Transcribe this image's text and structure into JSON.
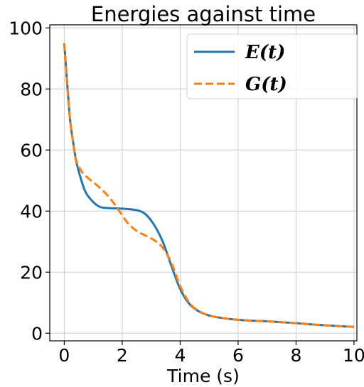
{
  "chart_data": {
    "type": "line",
    "title": "Energies against time",
    "xlabel": "Time (s)",
    "ylabel": "",
    "xlim": [
      -0.5,
      10.1
    ],
    "ylim": [
      -2.5,
      101
    ],
    "xticks": [
      0,
      2,
      4,
      6,
      8,
      10
    ],
    "yticks": [
      0,
      20,
      40,
      60,
      80,
      100
    ],
    "grid": true,
    "legend": "top-right",
    "series": [
      {
        "name": "E(t)",
        "color": "#1f77b4",
        "style": "solid",
        "x": [
          0,
          0.1,
          0.2,
          0.3,
          0.4,
          0.5,
          0.7,
          0.9,
          1.2,
          1.5,
          2.0,
          2.5,
          2.8,
          3.1,
          3.4,
          3.7,
          4.0,
          4.3,
          4.6,
          5.0,
          5.5,
          6.0,
          6.5,
          7.0,
          7.5,
          8.0,
          8.5,
          9.0,
          9.5,
          10.0
        ],
        "y": [
          95,
          82,
          70,
          63,
          57,
          53,
          47,
          44,
          41.5,
          41,
          40.8,
          40.3,
          39,
          35.5,
          30,
          22,
          14.5,
          9.8,
          7.4,
          5.8,
          4.9,
          4.4,
          4.1,
          3.9,
          3.6,
          3.3,
          2.9,
          2.6,
          2.3,
          2.1
        ]
      },
      {
        "name": "G(t)",
        "color": "#ff7f0e",
        "style": "dashed",
        "x": [
          0,
          0.1,
          0.2,
          0.3,
          0.4,
          0.6,
          0.8,
          1.0,
          1.3,
          1.6,
          1.9,
          2.2,
          2.5,
          2.8,
          3.1,
          3.4,
          3.7,
          4.0,
          4.3,
          4.6,
          5.0,
          5.5,
          6.0,
          6.5,
          7.0,
          7.5,
          8.0,
          8.5,
          9.0,
          9.5,
          10.0
        ],
        "y": [
          95,
          82,
          70,
          63,
          57,
          53,
          51,
          49.5,
          47,
          44,
          40,
          36,
          33.5,
          32,
          30.5,
          28,
          23,
          15.5,
          10.2,
          7.5,
          5.8,
          4.9,
          4.4,
          4.1,
          3.9,
          3.6,
          3.3,
          2.9,
          2.6,
          2.3,
          2.1
        ]
      }
    ]
  }
}
